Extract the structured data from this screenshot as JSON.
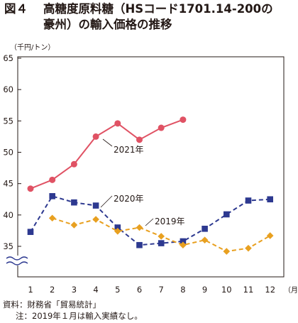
{
  "header": {
    "figure_label": "図４",
    "title_line1": "高糖度原料糖（HSコード1701.14-200の",
    "title_line2": "豪州）の輸入価格の推移"
  },
  "footer": {
    "source": "資料：財務省「貿易統計」",
    "note": "注：2019年１月は輸入実績なし。"
  },
  "chart_data": {
    "type": "line",
    "ylabel": "（千円/トン）",
    "x_unit": "（月）",
    "categories": [
      "1",
      "2",
      "3",
      "4",
      "5",
      "6",
      "7",
      "8",
      "9",
      "10",
      "11",
      "12"
    ],
    "ylim": [
      35,
      65
    ],
    "yticks": [
      35,
      40,
      45,
      50,
      55,
      60,
      65
    ],
    "axis_break": true,
    "grid": false,
    "series": [
      {
        "name": "2021年",
        "color": "#e05264",
        "marker": "circle",
        "dash": "solid",
        "values": [
          44.2,
          45.6,
          48.1,
          52.5,
          54.6,
          52.0,
          53.9,
          55.2,
          null,
          null,
          null,
          null
        ]
      },
      {
        "name": "2020年",
        "color": "#2d3990",
        "marker": "square",
        "dash": "dash",
        "values": [
          37.3,
          43.0,
          42.0,
          41.5,
          38.0,
          35.2,
          35.5,
          35.8,
          37.8,
          40.1,
          42.3,
          42.5
        ]
      },
      {
        "name": "2019年",
        "color": "#e8a020",
        "marker": "diamond",
        "dash": "dash",
        "values": [
          null,
          39.5,
          38.4,
          39.3,
          37.4,
          38.0,
          36.6,
          35.2,
          36.0,
          34.2,
          34.7,
          36.7
        ]
      }
    ]
  }
}
